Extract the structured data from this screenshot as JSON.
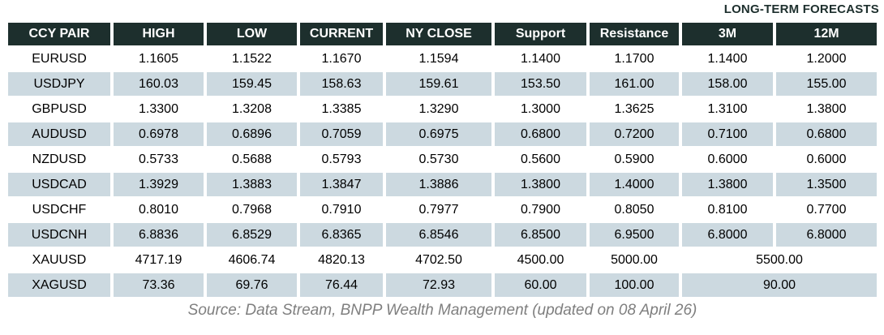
{
  "title": "LONG-TERM FORECASTS",
  "footer": "Source: Data Stream, BNPP Wealth Management (updated on 08 April 26)",
  "colors": {
    "header_bg": "#1d2f2d",
    "header_text": "#ffffff",
    "row_stripe": "#ccd9e0",
    "title_text": "#1d2f2d",
    "source_text": "#7f7f7f"
  },
  "chart_data": {
    "type": "table",
    "title": "LONG-TERM FORECASTS",
    "columns": [
      "CCY PAIR",
      "HIGH",
      "LOW",
      "CURRENT",
      "NY CLOSE",
      "Support",
      "Resistance",
      "3M",
      "12M"
    ],
    "rows": [
      {
        "cells": [
          "EURUSD",
          "1.1605",
          "1.1522",
          "1.1670",
          "1.1594",
          "1.1400",
          "1.1700",
          "1.1400",
          "1.2000"
        ]
      },
      {
        "cells": [
          "USDJPY",
          "160.03",
          "159.45",
          "158.63",
          "159.61",
          "153.50",
          "161.00",
          "158.00",
          "155.00"
        ]
      },
      {
        "cells": [
          "GBPUSD",
          "1.3300",
          "1.3208",
          "1.3385",
          "1.3290",
          "1.3000",
          "1.3625",
          "1.3100",
          "1.3800"
        ]
      },
      {
        "cells": [
          "AUDUSD",
          "0.6978",
          "0.6896",
          "0.7059",
          "0.6975",
          "0.6800",
          "0.7200",
          "0.7100",
          "0.6800"
        ]
      },
      {
        "cells": [
          "NZDUSD",
          "0.5733",
          "0.5688",
          "0.5793",
          "0.5730",
          "0.5600",
          "0.5900",
          "0.6000",
          "0.6000"
        ]
      },
      {
        "cells": [
          "USDCAD",
          "1.3929",
          "1.3883",
          "1.3847",
          "1.3886",
          "1.3800",
          "1.4000",
          "1.3800",
          "1.3500"
        ]
      },
      {
        "cells": [
          "USDCHF",
          "0.8010",
          "0.7968",
          "0.7910",
          "0.7977",
          "0.7900",
          "0.8050",
          "0.8100",
          "0.7700"
        ]
      },
      {
        "cells": [
          "USDCNH",
          "6.8836",
          "6.8529",
          "6.8365",
          "6.8546",
          "6.8500",
          "6.9500",
          "6.8000",
          "6.8000"
        ]
      },
      {
        "cells": [
          "XAUUSD",
          "4717.19",
          "4606.74",
          "4820.13",
          "4702.50",
          "4500.00",
          "5000.00"
        ],
        "merged_last": "5500.00"
      },
      {
        "cells": [
          "XAGUSD",
          "73.36",
          "69.76",
          "76.44",
          "72.93",
          "60.00",
          "100.00"
        ],
        "merged_last": "90.00"
      }
    ],
    "layout_hints": {
      "striped_rows": "even data rows shaded",
      "merged_cells": "XAUUSD and XAGUSD long-term forecast spans 3M and 12M columns"
    }
  }
}
